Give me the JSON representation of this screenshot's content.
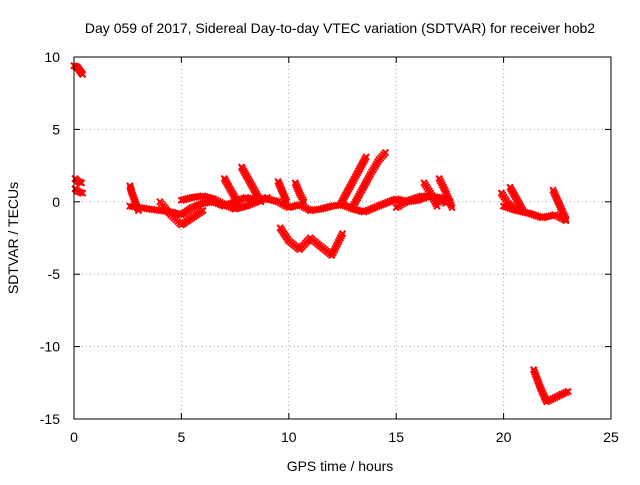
{
  "chart_data": {
    "type": "scatter",
    "title": "Day 059 of 2017, Sidereal Day-to-day VTEC variation (SDTVAR) for receiver hob2",
    "xlabel": "GPS time / hours",
    "ylabel": "SDTVAR / TECUs",
    "xlim": [
      0,
      25
    ],
    "ylim": [
      -15,
      10
    ],
    "xticks": [
      0,
      5,
      10,
      15,
      20,
      25
    ],
    "yticks": [
      10,
      5,
      0,
      -5,
      -10,
      -15
    ],
    "xtick_labels": [
      "0",
      "5",
      "10",
      "15",
      "20",
      "25"
    ],
    "ytick_labels": [
      "10",
      "5",
      "0",
      "-5",
      "-10",
      "-15"
    ],
    "grid": true,
    "legend": "none",
    "marker_color": "#ff0000",
    "series": [
      {
        "x": [
          0.0,
          0.15,
          0.3,
          0.4
        ],
        "y": [
          9.4,
          9.3,
          9.0,
          8.8
        ]
      },
      {
        "x": [
          0.05,
          0.2,
          0.35
        ],
        "y": [
          1.6,
          1.4,
          1.3
        ]
      },
      {
        "x": [
          0.05,
          0.2,
          0.4
        ],
        "y": [
          0.9,
          0.7,
          0.6
        ]
      },
      {
        "x": [
          2.6,
          2.7,
          2.85,
          3.0
        ],
        "y": [
          1.1,
          0.6,
          0.0,
          -0.6
        ]
      },
      {
        "x": [
          2.6,
          3.5,
          4.5,
          5.0,
          5.5,
          6.0,
          6.5,
          7.0,
          7.5,
          8.0,
          8.5,
          9.0,
          9.5,
          10.0,
          10.5,
          11.0,
          11.5,
          12.0,
          12.5,
          13.0,
          13.5,
          14.0,
          14.5,
          15.0,
          15.5,
          16.0,
          16.5,
          17.0,
          17.5
        ],
        "y": [
          -0.3,
          -0.5,
          -0.7,
          -0.9,
          -0.4,
          -0.1,
          0.0,
          -0.3,
          0.0,
          0.3,
          0.1,
          0.2,
          0.0,
          -0.4,
          -0.2,
          -0.6,
          -0.5,
          -0.3,
          -0.2,
          -0.5,
          -0.7,
          -0.4,
          -0.1,
          0.2,
          0.0,
          0.1,
          0.4,
          0.3,
          0.0
        ]
      },
      {
        "x": [
          4.0,
          4.5,
          5.0,
          5.5,
          6.0
        ],
        "y": [
          0.0,
          -0.9,
          -1.6,
          -1.1,
          -0.6
        ]
      },
      {
        "x": [
          5.0,
          5.5,
          6.0,
          6.5,
          7.0,
          7.5,
          8.0,
          8.5,
          9.0
        ],
        "y": [
          0.1,
          0.3,
          0.4,
          0.2,
          -0.2,
          -0.5,
          -0.3,
          0.0,
          0.3
        ]
      },
      {
        "x": [
          7.0,
          7.3,
          7.6
        ],
        "y": [
          1.6,
          0.8,
          0.0
        ]
      },
      {
        "x": [
          7.8,
          8.1,
          8.4,
          8.7
        ],
        "y": [
          2.4,
          1.6,
          0.8,
          0.0
        ]
      },
      {
        "x": [
          9.5,
          9.7,
          9.9
        ],
        "y": [
          1.4,
          0.7,
          0.0
        ]
      },
      {
        "x": [
          10.3,
          10.5,
          10.7
        ],
        "y": [
          1.3,
          0.6,
          0.0
        ]
      },
      {
        "x": [
          9.6,
          10.0,
          10.5,
          11.0,
          11.5,
          12.0,
          12.5
        ],
        "y": [
          -1.8,
          -2.7,
          -3.3,
          -2.5,
          -3.1,
          -3.7,
          -2.2
        ]
      },
      {
        "x": [
          12.4,
          12.8,
          13.2,
          13.6
        ],
        "y": [
          -0.2,
          0.9,
          2.0,
          3.1
        ]
      },
      {
        "x": [
          13.0,
          13.4,
          13.8,
          14.2,
          14.5
        ],
        "y": [
          -0.3,
          0.8,
          1.9,
          2.9,
          3.4
        ]
      },
      {
        "x": [
          15.0,
          15.6,
          16.2,
          16.8,
          17.3
        ],
        "y": [
          -0.4,
          0.1,
          0.4,
          0.3,
          -0.1
        ]
      },
      {
        "x": [
          16.3,
          16.6,
          16.9
        ],
        "y": [
          1.3,
          0.6,
          -0.3
        ]
      },
      {
        "x": [
          17.0,
          17.3,
          17.6
        ],
        "y": [
          1.6,
          0.7,
          -0.4
        ]
      },
      {
        "x": [
          19.9,
          20.2,
          20.5
        ],
        "y": [
          0.6,
          -0.1,
          -0.5
        ]
      },
      {
        "x": [
          20.0,
          20.6,
          21.2,
          21.8,
          22.4,
          22.9
        ],
        "y": [
          -0.3,
          -0.6,
          -0.8,
          -1.1,
          -0.9,
          -1.3
        ]
      },
      {
        "x": [
          20.3,
          20.6,
          20.9
        ],
        "y": [
          1.0,
          0.2,
          -0.6
        ]
      },
      {
        "x": [
          22.3,
          22.6,
          22.9
        ],
        "y": [
          0.8,
          -0.2,
          -1.2
        ]
      },
      {
        "x": [
          21.4,
          21.7,
          22.0,
          22.3,
          22.7,
          23.0
        ],
        "y": [
          -11.6,
          -12.8,
          -13.8,
          -13.6,
          -13.3,
          -13.1
        ]
      }
    ]
  }
}
